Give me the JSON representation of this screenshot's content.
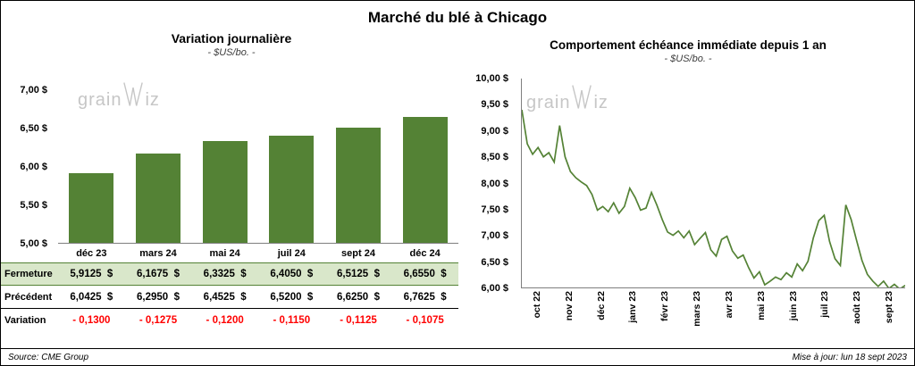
{
  "page": {
    "title": "Marché du blé à Chicago",
    "source": "Source: CME Group",
    "updated": "Mise à jour: lun 18 sept 2023"
  },
  "watermark": {
    "prefix": "grain",
    "suffix": "iz"
  },
  "colors": {
    "bar": "#548235",
    "line": "#548235",
    "fermeture_row_bg": "#d9e7ca",
    "variation_text": "#ff0000"
  },
  "chart_data": [
    {
      "type": "bar",
      "title": "Variation journalière",
      "subtitle": "- $US/bo. -",
      "categories": [
        "déc 23",
        "mars 24",
        "mai 24",
        "juil 24",
        "sept 24",
        "déc 24"
      ],
      "values": [
        5.9125,
        6.1675,
        6.3325,
        6.405,
        6.5125,
        6.655
      ],
      "ylim": [
        5.0,
        7.0
      ],
      "ytick_step": 0.5,
      "ytick_labels": [
        "7,00 $",
        "6,50 $",
        "6,00 $",
        "5,50 $",
        "5,00 $"
      ],
      "grid": false,
      "legend": false
    },
    {
      "type": "line",
      "title": "Comportement échéance immédiate depuis 1 an",
      "subtitle": "- $US/bo. -",
      "x_labels": [
        "oct 22",
        "nov 22",
        "déc 22",
        "janv 23",
        "févr 23",
        "mars 23",
        "avr 23",
        "mai 23",
        "juin 23",
        "juil 23",
        "août 23",
        "sept 23"
      ],
      "values": [
        9.4,
        8.75,
        8.55,
        8.68,
        8.5,
        8.58,
        8.4,
        9.1,
        8.5,
        8.22,
        8.1,
        8.02,
        7.95,
        7.78,
        7.48,
        7.55,
        7.45,
        7.62,
        7.42,
        7.55,
        7.9,
        7.72,
        7.48,
        7.52,
        7.82,
        7.58,
        7.3,
        7.06,
        7.0,
        7.08,
        6.95,
        7.08,
        6.82,
        6.94,
        7.05,
        6.72,
        6.6,
        6.92,
        6.98,
        6.7,
        6.56,
        6.62,
        6.38,
        6.18,
        6.3,
        6.05,
        6.12,
        6.2,
        6.15,
        6.28,
        6.2,
        6.45,
        6.32,
        6.5,
        6.95,
        7.28,
        7.38,
        6.88,
        6.55,
        6.42,
        7.58,
        7.3,
        6.9,
        6.52,
        6.25,
        6.12,
        6.02,
        6.12,
        5.98,
        6.06,
        5.97,
        6.04
      ],
      "ylim": [
        6.0,
        10.0
      ],
      "ytick_step": 0.5,
      "ytick_labels": [
        "10,00 $",
        "9,50 $",
        "9,00 $",
        "8,50 $",
        "8,00 $",
        "7,50 $",
        "7,00 $",
        "6,50 $",
        "6,00 $"
      ],
      "grid": false,
      "legend": false
    }
  ],
  "table": {
    "rows": [
      {
        "label": "Fermeture",
        "values": [
          "5,9125  $",
          "6,1675  $",
          "6,3325  $",
          "6,4050  $",
          "6,5125  $",
          "6,6550  $"
        ]
      },
      {
        "label": "Précédent",
        "values": [
          "6,0425  $",
          "6,2950  $",
          "6,4525  $",
          "6,5200  $",
          "6,6250  $",
          "6,7625  $"
        ]
      },
      {
        "label": "Variation",
        "values": [
          "- 0,1300",
          "- 0,1275",
          "- 0,1200",
          "- 0,1150",
          "- 0,1125",
          "- 0,1075"
        ]
      }
    ]
  }
}
